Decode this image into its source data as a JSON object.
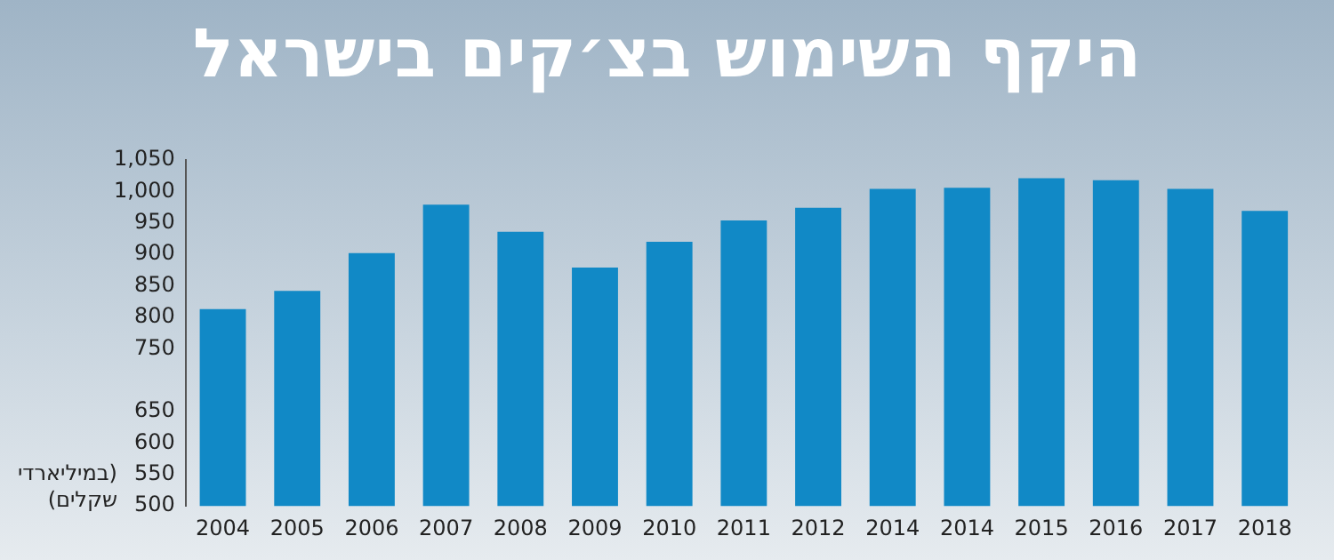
{
  "chart_data": {
    "type": "bar",
    "title": "היקף השימוש בצ׳קים בישראל",
    "ylabel": "(במיליארדי שקלים)",
    "categories": [
      "2004",
      "2005",
      "2006",
      "2007",
      "2008",
      "2009",
      "2010",
      "2011",
      "2012",
      "2014",
      "2014",
      "2015",
      "2016",
      "2017",
      "2018"
    ],
    "values": [
      813,
      842,
      902,
      979,
      936,
      879,
      920,
      954,
      974,
      1004,
      1006,
      1021,
      1018,
      1004,
      969
    ],
    "color": "#1189c6",
    "ylim": [
      500,
      1050
    ],
    "yticks": [
      500,
      550,
      600,
      650,
      750,
      800,
      850,
      900,
      950,
      {
        "value": 1000,
        "label": "1,000"
      },
      {
        "value": 1050,
        "label": "1,050"
      }
    ],
    "grid": false,
    "legend": false
  }
}
